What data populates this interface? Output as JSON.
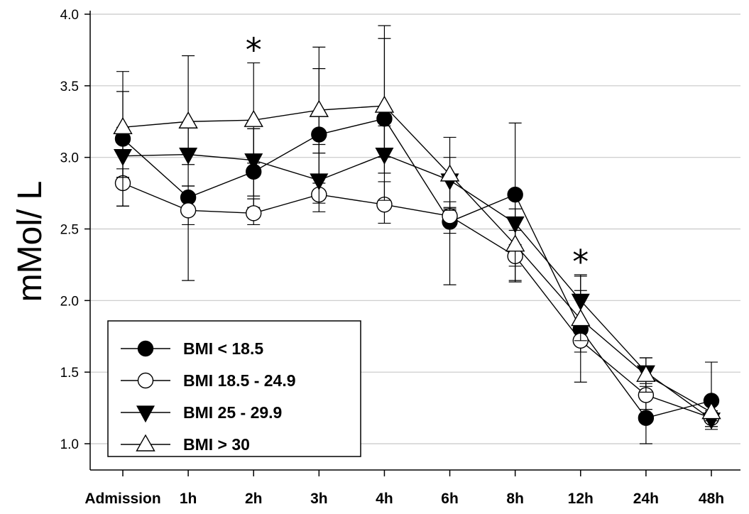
{
  "chart_data": {
    "type": "line",
    "ylabel": "mMol/ L",
    "xlabel": "",
    "ylim": [
      0.8,
      4.05
    ],
    "yticks": [
      "1.0",
      "1.5",
      "2.0",
      "2.5",
      "3.0",
      "3.5",
      "4.0"
    ],
    "categories": [
      "Admission",
      "1h",
      "2h",
      "3h",
      "4h",
      "6h",
      "8h",
      "12h",
      "24h",
      "48h"
    ],
    "grid": "horizontal",
    "legend_position": "bottom-left",
    "significance_markers": [
      {
        "category": "2h",
        "symbol": "*"
      },
      {
        "category": "12h",
        "symbol": "*"
      }
    ],
    "series": [
      {
        "name": "BMI < 18.5",
        "marker": "filled-circle",
        "values": [
          3.13,
          2.72,
          2.9,
          3.16,
          3.27,
          2.55,
          2.74,
          1.8,
          1.18,
          1.3
        ],
        "err_upper": [
          0.33,
          0.08,
          0.3,
          0.46,
          0.56,
          0.1,
          0.5,
          0.37,
          0.33,
          0.27
        ],
        "err_lower": [
          0.27,
          0.58,
          0.25,
          0.28,
          0.38,
          0.44,
          0.6,
          0.37,
          0.18,
          0.2
        ]
      },
      {
        "name": "BMI 18.5 - 24.9",
        "marker": "open-circle",
        "values": [
          2.82,
          2.63,
          2.61,
          2.74,
          2.67,
          2.59,
          2.31,
          1.72,
          1.34,
          1.18
        ],
        "err_upper": [
          0.1,
          0.08,
          0.1,
          0.08,
          0.16,
          0.1,
          0.06,
          0.08,
          0.08,
          0.05
        ],
        "err_lower": [
          0.16,
          0.1,
          0.08,
          0.12,
          0.13,
          0.12,
          0.18,
          0.08,
          0.1,
          0.06
        ]
      },
      {
        "name": "BMI 25 - 29.9",
        "marker": "filled-triangle-down",
        "values": [
          3.01,
          3.02,
          2.98,
          2.84,
          3.02,
          2.84,
          2.54,
          2.0,
          1.5,
          1.17
        ],
        "err_upper": [
          0.2,
          0.2,
          0.22,
          0.25,
          0.2,
          0.16,
          0.1,
          0.18,
          0.1,
          0.05
        ],
        "err_lower": [
          0.35,
          0.22,
          0.25,
          0.16,
          0.32,
          0.2,
          0.15,
          0.15,
          0.1,
          0.05
        ]
      },
      {
        "name": "BMI > 30",
        "marker": "open-triangle-up",
        "values": [
          3.21,
          3.25,
          3.26,
          3.33,
          3.36,
          2.88,
          2.39,
          1.87,
          1.48,
          1.22
        ],
        "err_upper": [
          0.39,
          0.46,
          0.4,
          0.44,
          0.56,
          0.26,
          0.1,
          0.2,
          0.12,
          0.06
        ],
        "err_lower": [
          0.35,
          0.3,
          0.3,
          0.3,
          0.36,
          0.25,
          0.15,
          0.15,
          0.12,
          0.06
        ]
      }
    ]
  }
}
